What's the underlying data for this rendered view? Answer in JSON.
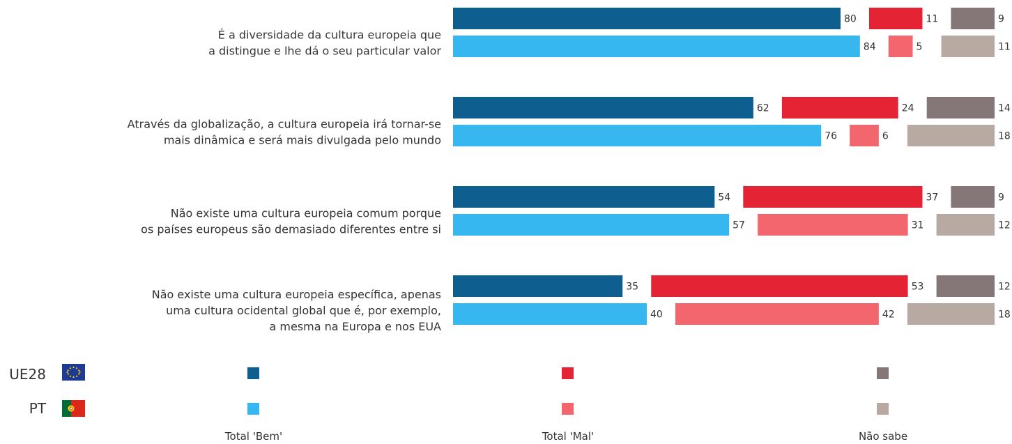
{
  "chart_data": {
    "type": "bar",
    "orientation": "horizontal-stacked",
    "categories": [
      [
        "É a diversidade da cultura europeia que",
        "a distingue e lhe dá o seu particular valor"
      ],
      [
        "Através da globalização, a cultura europeia irá tornar-se",
        "mais dinâmica e será mais divulgada pelo mundo"
      ],
      [
        "Não existe uma cultura europeia comum porque",
        "os países europeus são demasiado diferentes entre si"
      ],
      [
        "Não existe uma cultura europeia específica, apenas",
        "uma cultura ocidental global que é, por exemplo,",
        "a mesma na Europa e nos EUA"
      ]
    ],
    "groups": [
      {
        "name": "UE28",
        "flag": "eu-flag-icon"
      },
      {
        "name": "PT",
        "flag": "portugal-flag-icon"
      }
    ],
    "answers": [
      "Total 'Bem'",
      "Total 'Mal'",
      "Não sabe"
    ],
    "colors": {
      "UE28": [
        "#0e5f8f",
        "#e42334",
        "#857678"
      ],
      "PT": [
        "#36b7ef",
        "#f4666d",
        "#b8aaa2"
      ]
    },
    "values": {
      "UE28": [
        [
          80,
          11,
          9
        ],
        [
          62,
          24,
          14
        ],
        [
          54,
          37,
          9
        ],
        [
          35,
          53,
          12
        ]
      ],
      "PT": [
        [
          84,
          5,
          11
        ],
        [
          76,
          6,
          18
        ],
        [
          57,
          31,
          12
        ],
        [
          40,
          42,
          18
        ]
      ]
    },
    "xlim": [
      0,
      100
    ],
    "legend": "bottom"
  }
}
